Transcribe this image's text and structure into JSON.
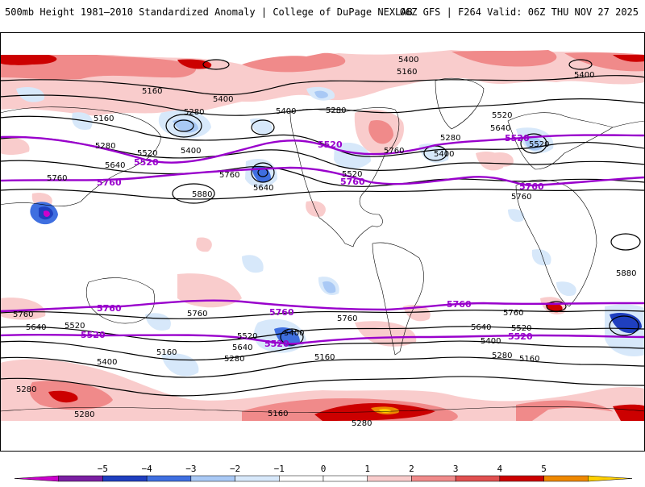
{
  "header": {
    "title_left": "500mb Height 1981–2010 Standardized Anomaly | College of DuPage NEXLAB",
    "title_right": "06Z GFS | F264 Valid: 06Z THU NOV 27 2025"
  },
  "map": {
    "projection": "global equirectangular",
    "contour_labels_black": [
      {
        "id": "n1",
        "text": "5400"
      },
      {
        "id": "n2",
        "text": "5160"
      },
      {
        "id": "n3",
        "text": "5400"
      },
      {
        "id": "n4",
        "text": "5160"
      },
      {
        "id": "n5",
        "text": "5280"
      },
      {
        "id": "n6",
        "text": "5400"
      },
      {
        "id": "n7",
        "text": "5160"
      },
      {
        "id": "n8",
        "text": "5400"
      },
      {
        "id": "n9",
        "text": "5280"
      },
      {
        "id": "n10",
        "text": "5520"
      },
      {
        "id": "n11",
        "text": "5640"
      },
      {
        "id": "n12",
        "text": "5400"
      },
      {
        "id": "n13",
        "text": "5280"
      },
      {
        "id": "n14",
        "text": "5520"
      },
      {
        "id": "n15",
        "text": "5640"
      },
      {
        "id": "n16",
        "text": "5520"
      },
      {
        "id": "n17",
        "text": "5400"
      },
      {
        "id": "n18",
        "text": "5280"
      },
      {
        "id": "n19",
        "text": "5760"
      },
      {
        "id": "n20",
        "text": "5760"
      },
      {
        "id": "n21",
        "text": "5640"
      },
      {
        "id": "n22",
        "text": "5880"
      },
      {
        "id": "n23",
        "text": "5520"
      },
      {
        "id": "n24",
        "text": "5760"
      },
      {
        "id": "n25",
        "text": "5760"
      },
      {
        "id": "n26",
        "text": "5880"
      },
      {
        "id": "s1",
        "text": "5760"
      },
      {
        "id": "s2",
        "text": "5640"
      },
      {
        "id": "s3",
        "text": "5520"
      },
      {
        "id": "s4",
        "text": "5400"
      },
      {
        "id": "s5",
        "text": "5280"
      },
      {
        "id": "s6",
        "text": "5280"
      },
      {
        "id": "s7",
        "text": "5160"
      },
      {
        "id": "s8",
        "text": "5760"
      },
      {
        "id": "s9",
        "text": "5640"
      },
      {
        "id": "s10",
        "text": "5520"
      },
      {
        "id": "s11",
        "text": "5280"
      },
      {
        "id": "s12",
        "text": "5400"
      },
      {
        "id": "s13",
        "text": "5160"
      },
      {
        "id": "s14",
        "text": "5760"
      },
      {
        "id": "s15",
        "text": "5760"
      },
      {
        "id": "s16",
        "text": "5640"
      },
      {
        "id": "s17",
        "text": "5520"
      },
      {
        "id": "s18",
        "text": "5400"
      },
      {
        "id": "s19",
        "text": "5280"
      },
      {
        "id": "s20",
        "text": "5160"
      },
      {
        "id": "s21",
        "text": "5160"
      },
      {
        "id": "s22",
        "text": "5280"
      }
    ],
    "contour_labels_purple": [
      {
        "id": "p1",
        "text": "5520"
      },
      {
        "id": "p2",
        "text": "5520"
      },
      {
        "id": "p3",
        "text": "5520"
      },
      {
        "id": "p4",
        "text": "5760"
      },
      {
        "id": "p5",
        "text": "5760"
      },
      {
        "id": "p6",
        "text": "5760"
      },
      {
        "id": "p7",
        "text": "5760"
      },
      {
        "id": "p8",
        "text": "5760"
      },
      {
        "id": "p9",
        "text": "5760"
      },
      {
        "id": "p10",
        "text": "5520"
      },
      {
        "id": "p11",
        "text": "5520"
      },
      {
        "id": "p12",
        "text": "5520"
      }
    ]
  },
  "colorbar": {
    "ticks": [
      "−5",
      "−4",
      "−3",
      "−2",
      "−1",
      "0",
      "1",
      "2",
      "3",
      "4",
      "5"
    ],
    "colors": [
      "#cc00cc",
      "#7a1fa2",
      "#1f3fbf",
      "#3f6fe0",
      "#a9c9f5",
      "#d7e8fa",
      "#ffffff",
      "#ffffff",
      "#f9cccc",
      "#f08a8a",
      "#e05050",
      "#cc0000",
      "#ee8800",
      "#ffd000"
    ]
  },
  "colors": {
    "positive_light": "#f9cccc",
    "positive_mid": "#f08a8a",
    "positive_strong": "#cc0000",
    "negative_light": "#d7e8fa",
    "negative_mid": "#a9c9f5",
    "negative_strong": "#1f3fbf",
    "highlight_contour": "#9900cc"
  }
}
